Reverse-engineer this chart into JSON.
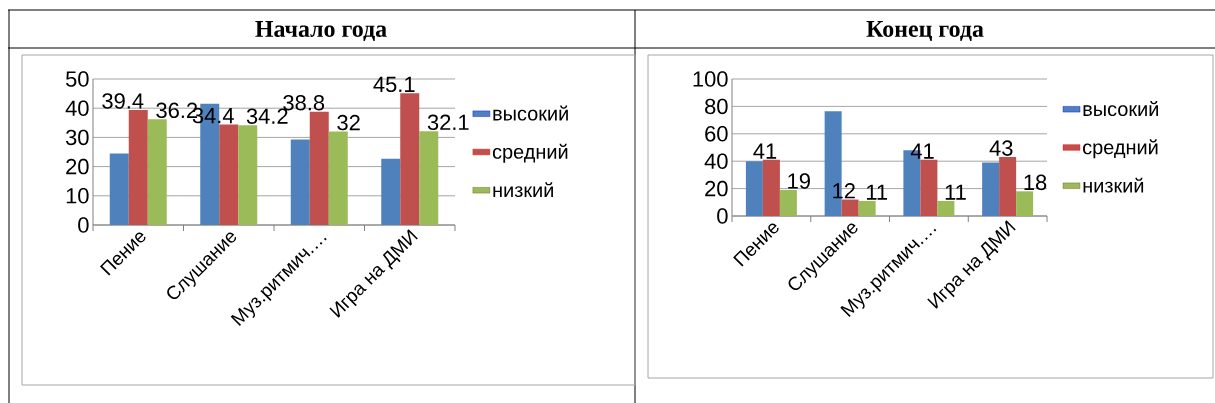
{
  "chart_data": [
    {
      "type": "bar",
      "title": "Начало года",
      "categories": [
        "Пение",
        "Слушание",
        "Муз.ритмич.…",
        "Игра на ДМИ"
      ],
      "ylim": [
        0,
        50
      ],
      "yticks": [
        0,
        10,
        20,
        30,
        40,
        50
      ],
      "grid": "y",
      "legend": "right",
      "series": [
        {
          "name": "высокий",
          "color": "#4f81bd",
          "values": [
            24.5,
            41.5,
            29.3,
            22.7
          ]
        },
        {
          "name": "средний",
          "color": "#c0504d",
          "values": [
            39.4,
            34.4,
            38.8,
            45.1
          ],
          "value_labels": [
            "39.4",
            "34.4",
            "38.8",
            "45.1"
          ]
        },
        {
          "name": "низкий",
          "color": "#9bbb59",
          "values": [
            36.2,
            34.2,
            32,
            32.1
          ],
          "value_labels": [
            "36.2",
            "34.2",
            "32",
            "32.1"
          ]
        }
      ]
    },
    {
      "type": "bar",
      "title": "Конец года",
      "categories": [
        "Пение",
        "Слушание",
        "Муз.ритмич.…",
        "Игра на ДМИ"
      ],
      "ylim": [
        0,
        100
      ],
      "yticks": [
        0,
        20,
        40,
        60,
        80,
        100
      ],
      "grid": "y",
      "legend": "right",
      "series": [
        {
          "name": "высокий",
          "color": "#4f81bd",
          "values": [
            40,
            76.5,
            48,
            39
          ]
        },
        {
          "name": "средний",
          "color": "#c0504d",
          "values": [
            41,
            12,
            41,
            43
          ],
          "value_labels": [
            "41",
            "12",
            "41",
            "43"
          ]
        },
        {
          "name": "низкий",
          "color": "#9bbb59",
          "values": [
            19,
            11,
            11,
            18
          ],
          "value_labels": [
            "19",
            "11",
            "11",
            "18"
          ]
        }
      ]
    }
  ]
}
